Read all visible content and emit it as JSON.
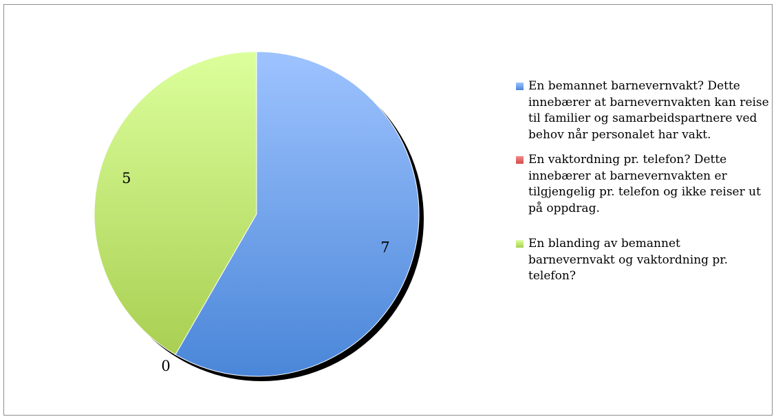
{
  "chart_data": {
    "type": "pie",
    "title": "",
    "categories": [
      "En bemannet barnevernvakt? Dette innebærer at barnevernvakten kan reise til familier og samarbeidspartnere ved behov når personalet har vakt.",
      "En vaktordning pr. telefon? Dette innebærer at barnevernvakten er tilgjengelig pr. telefon og ikke reiser ut på oppdrag.",
      "En blanding av bemannet barnevernvakt og vaktordning pr. telefon?"
    ],
    "values": [
      7,
      0,
      5
    ],
    "data_labels": [
      "7",
      "0",
      "5"
    ],
    "colors": [
      "#4a86d8",
      "#d64b4b",
      "#a9cf52"
    ],
    "colors_light": [
      "#9ec3ff",
      "#f08a8a",
      "#dcff9c"
    ],
    "legend_position": "right",
    "start_angle_deg": 0,
    "direction": "clockwise"
  }
}
